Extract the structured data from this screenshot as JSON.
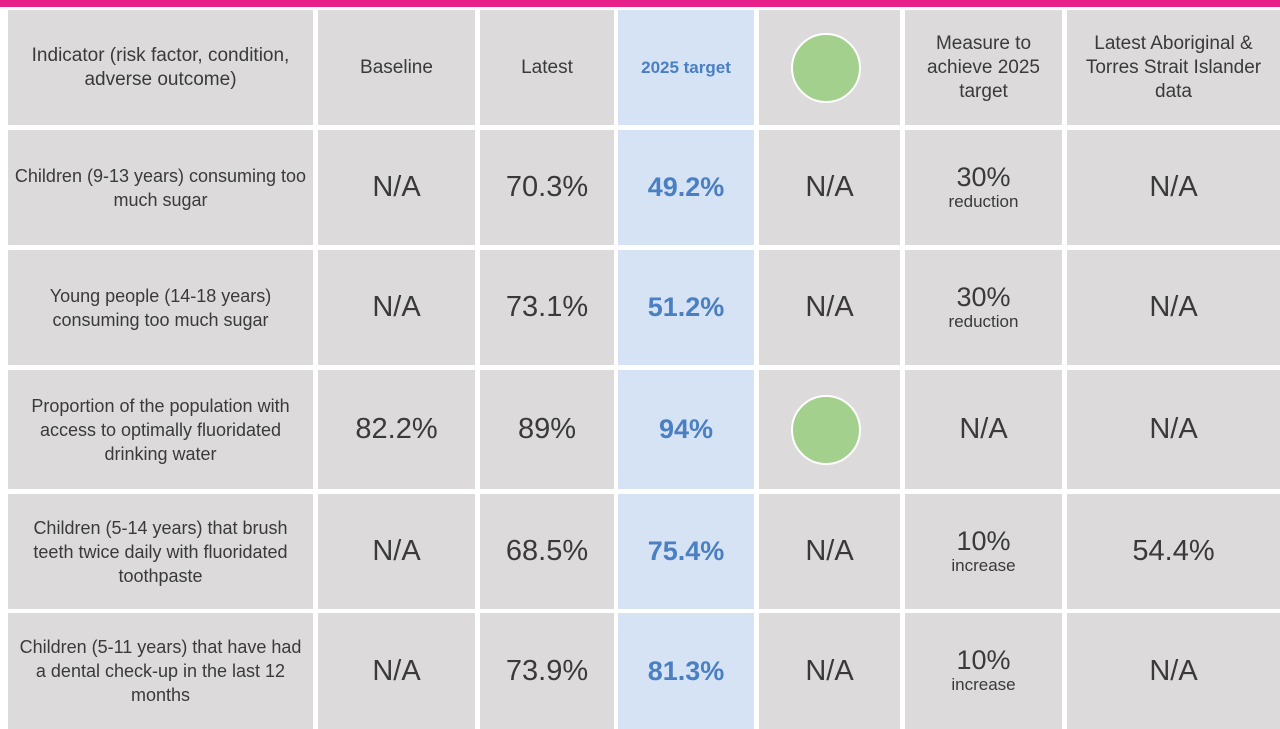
{
  "table": {
    "header": [
      "Indicator (risk factor, condition, adverse outcome)",
      "Baseline",
      "Latest",
      "2025 target",
      "Measure to achieve 2025 target",
      "Latest Aboriginal & Torres Strait Islander data"
    ],
    "rows": [
      {
        "indicator": "Children (9-13 years) consuming too much sugar",
        "baseline": "N/A",
        "latest": "70.3%",
        "target": "49.2%",
        "status": "N/A",
        "measure": {
          "amount": "30%",
          "unit": "reduction"
        },
        "aboriginal": "N/A"
      },
      {
        "indicator": "Young people (14-18 years) consuming too much sugar",
        "baseline": "N/A",
        "latest": "73.1%",
        "target": "51.2%",
        "status": "N/A",
        "measure": {
          "amount": "30%",
          "unit": "reduction"
        },
        "aboriginal": "N/A"
      },
      {
        "indicator": "Proportion of the population with access to optimally fluoridated drinking water",
        "baseline": "82.2%",
        "latest": "89%",
        "target": "94%",
        "measure": "N/A",
        "aboriginal": "N/A"
      },
      {
        "indicator": "Children (5-14 years) that brush teeth twice daily with fluoridated toothpaste",
        "baseline": "N/A",
        "latest": "68.5%",
        "target": "75.4%",
        "status": "N/A",
        "measure": {
          "amount": "10%",
          "unit": "increase"
        },
        "aboriginal": "54.4%"
      },
      {
        "indicator": "Children (5-11 years) that have had a dental check-up in the last 12 months",
        "baseline": "N/A",
        "latest": "73.9%",
        "target": "81.3%",
        "status": "N/A",
        "measure": {
          "amount": "10%",
          "unit": "increase"
        },
        "aboriginal": "N/A"
      }
    ]
  }
}
